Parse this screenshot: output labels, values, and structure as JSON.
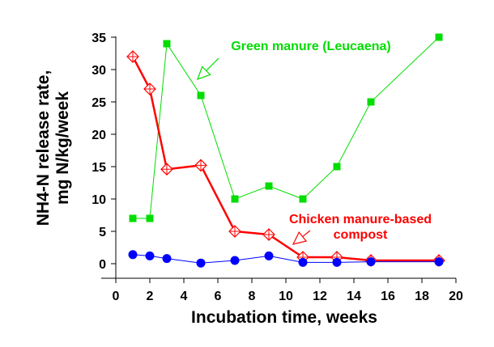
{
  "chart_data": {
    "type": "line",
    "xlabel": "Incubation time, weeks",
    "ylabel_lines": [
      "NH4-N release rate,",
      "mg N/kg/week"
    ],
    "xlim": [
      0,
      20
    ],
    "ylim": [
      0,
      35
    ],
    "xticks": [
      "0",
      "2",
      "4",
      "6",
      "8",
      "10",
      "12",
      "14",
      "16",
      "18",
      "20"
    ],
    "yticks": [
      "0",
      "5",
      "10",
      "15",
      "20",
      "25",
      "30",
      "35"
    ],
    "grid": false,
    "series": [
      {
        "name": "Green manure (Leucaena)",
        "color": "#00dd00",
        "marker": "square",
        "x": [
          1,
          2,
          3,
          5,
          7,
          9,
          11,
          13,
          15,
          19
        ],
        "y": [
          7,
          7,
          34,
          26,
          10,
          12,
          10,
          15,
          25,
          35
        ]
      },
      {
        "name": "Chicken manure-based compost",
        "color": "#ff0000",
        "marker": "diamond-plus",
        "x": [
          1,
          2,
          3,
          5,
          7,
          9,
          11,
          13,
          15,
          19
        ],
        "y": [
          32,
          27,
          14.6,
          15.2,
          5,
          4.5,
          1,
          1,
          0.5,
          0.5
        ]
      },
      {
        "color": "#0000ff",
        "marker": "circle",
        "x": [
          1,
          2,
          3,
          5,
          7,
          9,
          11,
          13,
          15,
          19
        ],
        "y": [
          1.4,
          1.2,
          0.8,
          0.1,
          0.5,
          1.2,
          0.2,
          0.2,
          0.3,
          0.3
        ]
      }
    ],
    "annotations": [
      {
        "lines": [
          "Green manure (Leucaena)"
        ],
        "color": "#00dd00"
      },
      {
        "lines": [
          "Chicken manure-based",
          "compost"
        ],
        "color": "#ff0000"
      }
    ]
  }
}
